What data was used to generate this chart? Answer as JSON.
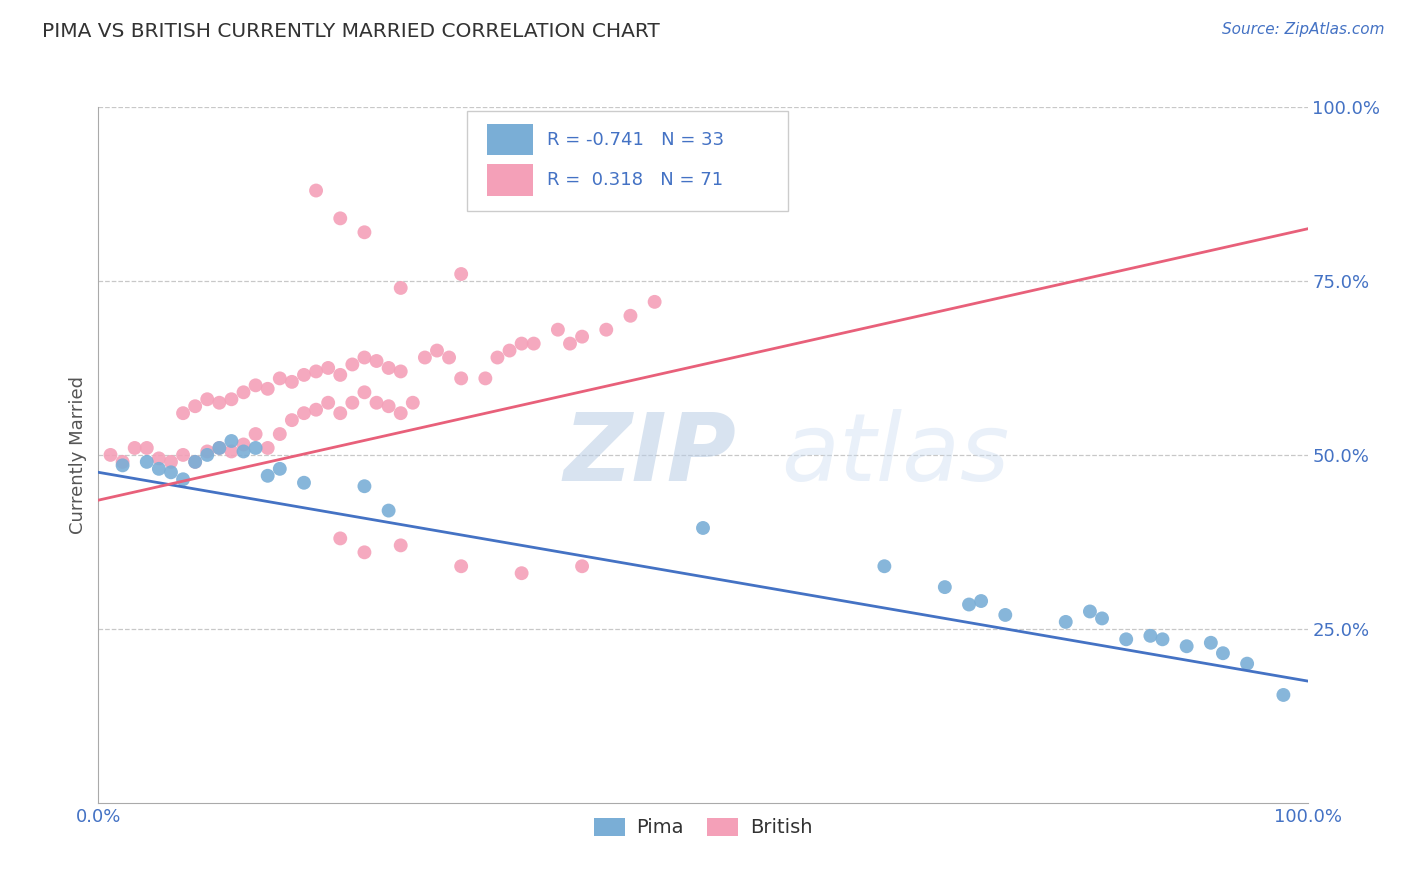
{
  "title": "PIMA VS BRITISH CURRENTLY MARRIED CORRELATION CHART",
  "source_text": "Source: ZipAtlas.com",
  "ylabel": "Currently Married",
  "x_min": 0.0,
  "x_max": 1.0,
  "y_min": 0.0,
  "y_max": 1.0,
  "pima_color": "#7aaed6",
  "british_color": "#f4a0b8",
  "pima_line_color": "#4472c4",
  "british_line_color": "#e8607a",
  "pima_R": -0.741,
  "pima_N": 33,
  "british_R": 0.318,
  "british_N": 71,
  "watermark": "ZIPatlas",
  "legend_label_pima": "Pima",
  "legend_label_british": "British",
  "pima_line_x0": 0.0,
  "pima_line_y0": 0.475,
  "pima_line_x1": 1.0,
  "pima_line_y1": 0.175,
  "british_line_x0": 0.0,
  "british_line_y0": 0.435,
  "british_line_x1": 1.0,
  "british_line_y1": 0.825,
  "pima_x": [
    0.02,
    0.04,
    0.05,
    0.06,
    0.07,
    0.08,
    0.09,
    0.1,
    0.11,
    0.12,
    0.13,
    0.14,
    0.15,
    0.17,
    0.22,
    0.24,
    0.5,
    0.65,
    0.7,
    0.72,
    0.73,
    0.75,
    0.8,
    0.82,
    0.83,
    0.85,
    0.87,
    0.88,
    0.9,
    0.92,
    0.93,
    0.95,
    0.98
  ],
  "pima_y": [
    0.485,
    0.49,
    0.48,
    0.475,
    0.465,
    0.49,
    0.5,
    0.51,
    0.52,
    0.505,
    0.51,
    0.47,
    0.48,
    0.46,
    0.455,
    0.42,
    0.395,
    0.34,
    0.31,
    0.285,
    0.29,
    0.27,
    0.26,
    0.275,
    0.265,
    0.235,
    0.24,
    0.235,
    0.225,
    0.23,
    0.215,
    0.2,
    0.155
  ],
  "british_x": [
    0.01,
    0.02,
    0.03,
    0.04,
    0.05,
    0.06,
    0.07,
    0.08,
    0.09,
    0.1,
    0.11,
    0.12,
    0.13,
    0.14,
    0.15,
    0.16,
    0.17,
    0.18,
    0.19,
    0.2,
    0.21,
    0.22,
    0.23,
    0.24,
    0.25,
    0.26,
    0.07,
    0.08,
    0.09,
    0.1,
    0.11,
    0.12,
    0.13,
    0.14,
    0.15,
    0.16,
    0.17,
    0.18,
    0.19,
    0.2,
    0.21,
    0.22,
    0.23,
    0.24,
    0.25,
    0.27,
    0.28,
    0.29,
    0.3,
    0.32,
    0.33,
    0.34,
    0.35,
    0.36,
    0.38,
    0.39,
    0.4,
    0.42,
    0.44,
    0.46,
    0.2,
    0.22,
    0.25,
    0.3,
    0.35,
    0.4,
    0.25,
    0.3,
    0.18,
    0.2,
    0.22
  ],
  "british_y": [
    0.5,
    0.49,
    0.51,
    0.51,
    0.495,
    0.49,
    0.5,
    0.49,
    0.505,
    0.51,
    0.505,
    0.515,
    0.53,
    0.51,
    0.53,
    0.55,
    0.56,
    0.565,
    0.575,
    0.56,
    0.575,
    0.59,
    0.575,
    0.57,
    0.56,
    0.575,
    0.56,
    0.57,
    0.58,
    0.575,
    0.58,
    0.59,
    0.6,
    0.595,
    0.61,
    0.605,
    0.615,
    0.62,
    0.625,
    0.615,
    0.63,
    0.64,
    0.635,
    0.625,
    0.62,
    0.64,
    0.65,
    0.64,
    0.61,
    0.61,
    0.64,
    0.65,
    0.66,
    0.66,
    0.68,
    0.66,
    0.67,
    0.68,
    0.7,
    0.72,
    0.38,
    0.36,
    0.37,
    0.34,
    0.33,
    0.34,
    0.74,
    0.76,
    0.88,
    0.84,
    0.82
  ]
}
